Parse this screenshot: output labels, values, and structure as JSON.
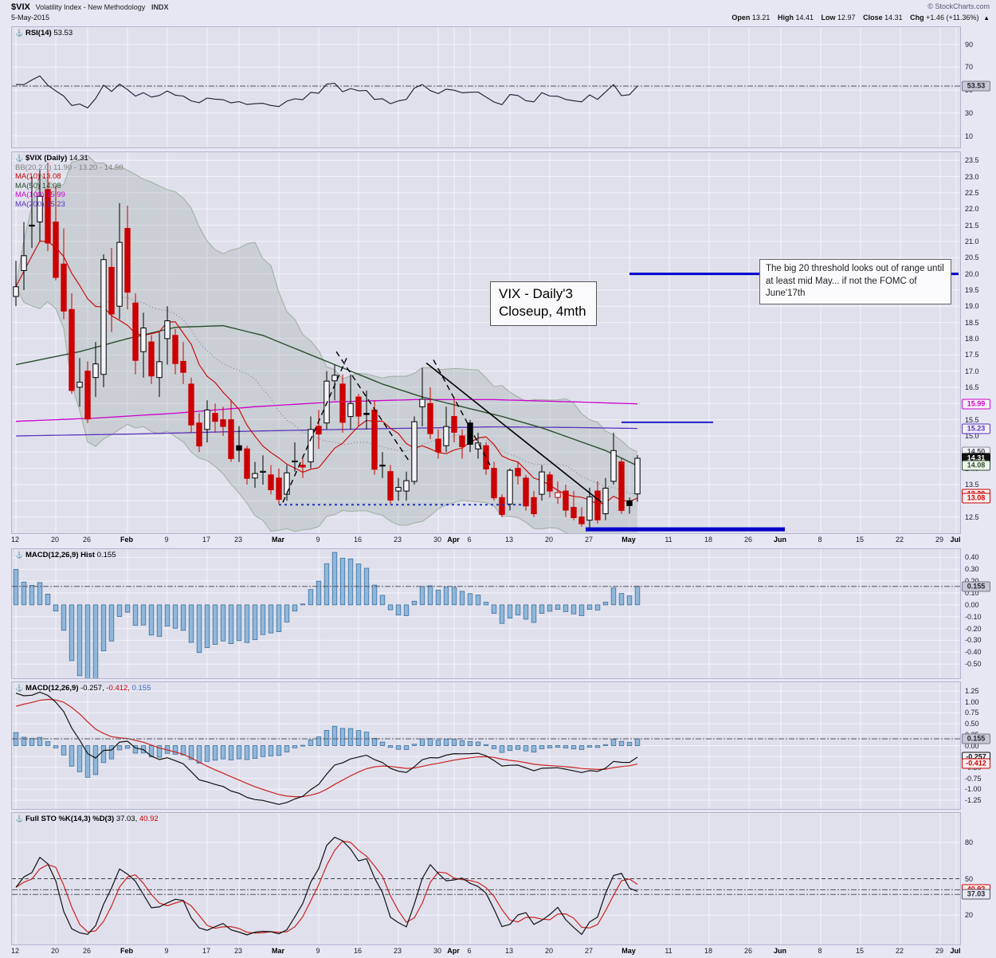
{
  "header": {
    "symbol": "$VIX",
    "title": "Volatility Index - New Methodology",
    "exchange": "INDX",
    "copyright": "© StockCharts.com",
    "date": "5-May-2015",
    "open_label": "Open",
    "open": "13.21",
    "high_label": "High",
    "high": "14.41",
    "low_label": "Low",
    "low": "12.97",
    "close_label": "Close",
    "close": "14.31",
    "chg_label": "Chg",
    "chg": "+1.46 (+11.36%)",
    "arrow": "▲"
  },
  "chart_data": {
    "type": "candlestick",
    "symbol": "$VIX",
    "frequency": "Daily",
    "title": "VIX - Daily'3 Closeup, 4mth",
    "x_total_slots": 119,
    "x_ticks": [
      {
        "i": 0,
        "t": "12"
      },
      {
        "i": 5,
        "t": "20"
      },
      {
        "i": 9,
        "t": "26"
      },
      {
        "i": 14,
        "t": "Feb",
        "m": true
      },
      {
        "i": 19,
        "t": "9"
      },
      {
        "i": 24,
        "t": "17"
      },
      {
        "i": 28,
        "t": "23"
      },
      {
        "i": 33,
        "t": "Mar",
        "m": true
      },
      {
        "i": 38,
        "t": "9"
      },
      {
        "i": 43,
        "t": "16"
      },
      {
        "i": 48,
        "t": "23"
      },
      {
        "i": 53,
        "t": "30"
      },
      {
        "i": 55,
        "t": "Apr",
        "m": true
      },
      {
        "i": 57,
        "t": "6"
      },
      {
        "i": 62,
        "t": "13"
      },
      {
        "i": 67,
        "t": "20"
      },
      {
        "i": 72,
        "t": "27"
      },
      {
        "i": 77,
        "t": "May",
        "m": true
      },
      {
        "i": 82,
        "t": "11"
      },
      {
        "i": 87,
        "t": "18"
      },
      {
        "i": 92,
        "t": "26"
      },
      {
        "i": 96,
        "t": "Jun",
        "m": true
      },
      {
        "i": 101,
        "t": "8"
      },
      {
        "i": 106,
        "t": "15"
      },
      {
        "i": 111,
        "t": "22"
      },
      {
        "i": 116,
        "t": "29"
      },
      {
        "i": 118,
        "t": "Jul",
        "m": true
      }
    ],
    "dates": [
      "Jan 12",
      "Jan 13",
      "Jan 14",
      "Jan 15",
      "Jan 16",
      "Jan 20",
      "Jan 21",
      "Jan 22",
      "Jan 23",
      "Jan 26",
      "Jan 27",
      "Jan 28",
      "Jan 29",
      "Jan 30",
      "Feb 2",
      "Feb 3",
      "Feb 4",
      "Feb 5",
      "Feb 6",
      "Feb 9",
      "Feb 10",
      "Feb 11",
      "Feb 12",
      "Feb 13",
      "Feb 17",
      "Feb 18",
      "Feb 19",
      "Feb 20",
      "Feb 23",
      "Feb 24",
      "Feb 25",
      "Feb 26",
      "Feb 27",
      "Mar 2",
      "Mar 3",
      "Mar 4",
      "Mar 5",
      "Mar 6",
      "Mar 9",
      "Mar 10",
      "Mar 11",
      "Mar 12",
      "Mar 13",
      "Mar 16",
      "Mar 17",
      "Mar 18",
      "Mar 19",
      "Mar 20",
      "Mar 23",
      "Mar 24",
      "Mar 25",
      "Mar 26",
      "Mar 27",
      "Mar 30",
      "Mar 31",
      "Apr 1",
      "Apr 2",
      "Apr 6",
      "Apr 7",
      "Apr 8",
      "Apr 9",
      "Apr 10",
      "Apr 13",
      "Apr 14",
      "Apr 15",
      "Apr 16",
      "Apr 17",
      "Apr 20",
      "Apr 21",
      "Apr 22",
      "Apr 23",
      "Apr 24",
      "Apr 27",
      "Apr 28",
      "Apr 29",
      "Apr 30",
      "May 1",
      "May 4",
      "May 5"
    ],
    "ohlc": [
      [
        19.3,
        20.4,
        19.0,
        19.6
      ],
      [
        20.1,
        21.6,
        19.5,
        20.56
      ],
      [
        21.5,
        23.0,
        20.8,
        21.48
      ],
      [
        21.6,
        23.2,
        21.0,
        22.39
      ],
      [
        22.6,
        23.43,
        20.7,
        20.95
      ],
      [
        21.6,
        22.7,
        19.8,
        19.89
      ],
      [
        20.3,
        21.4,
        18.6,
        18.85
      ],
      [
        18.9,
        19.4,
        16.3,
        16.4
      ],
      [
        16.5,
        17.4,
        15.9,
        16.66
      ],
      [
        17.0,
        17.3,
        15.4,
        15.52
      ],
      [
        16.8,
        17.9,
        16.2,
        17.22
      ],
      [
        16.9,
        20.6,
        16.5,
        20.44
      ],
      [
        20.2,
        20.8,
        18.2,
        18.76
      ],
      [
        19.0,
        22.18,
        18.6,
        20.97
      ],
      [
        21.4,
        22.1,
        18.9,
        19.43
      ],
      [
        19.1,
        19.4,
        16.9,
        17.33
      ],
      [
        17.6,
        18.8,
        16.8,
        18.33
      ],
      [
        17.9,
        18.1,
        16.6,
        16.85
      ],
      [
        16.8,
        18.2,
        16.2,
        17.29
      ],
      [
        18.0,
        19.0,
        17.2,
        18.55
      ],
      [
        18.1,
        18.3,
        16.9,
        17.23
      ],
      [
        17.3,
        17.9,
        16.6,
        16.96
      ],
      [
        16.6,
        16.8,
        15.1,
        15.34
      ],
      [
        15.4,
        15.7,
        14.5,
        14.69
      ],
      [
        15.2,
        16.1,
        14.8,
        15.8
      ],
      [
        15.7,
        16.0,
        15.1,
        15.45
      ],
      [
        15.5,
        15.9,
        15.0,
        15.29
      ],
      [
        15.5,
        16.1,
        14.2,
        14.3
      ],
      [
        14.7,
        15.3,
        14.2,
        14.56
      ],
      [
        14.6,
        14.7,
        13.5,
        13.69
      ],
      [
        13.7,
        14.2,
        13.4,
        13.84
      ],
      [
        13.9,
        14.4,
        13.5,
        13.91
      ],
      [
        13.8,
        14.1,
        13.2,
        13.34
      ],
      [
        13.7,
        14.0,
        12.9,
        13.04
      ],
      [
        13.2,
        14.1,
        13.0,
        13.86
      ],
      [
        14.2,
        14.8,
        13.9,
        14.23
      ],
      [
        14.1,
        14.3,
        13.7,
        14.04
      ],
      [
        14.2,
        15.6,
        14.0,
        15.2
      ],
      [
        15.3,
        15.8,
        14.6,
        15.06
      ],
      [
        15.4,
        17.0,
        15.2,
        16.69
      ],
      [
        16.7,
        17.2,
        16.1,
        16.87
      ],
      [
        16.6,
        16.9,
        15.1,
        15.42
      ],
      [
        15.6,
        16.9,
        15.2,
        16.0
      ],
      [
        16.2,
        16.3,
        15.3,
        15.61
      ],
      [
        15.7,
        16.4,
        15.2,
        15.66
      ],
      [
        15.8,
        16.1,
        13.8,
        13.97
      ],
      [
        14.1,
        14.5,
        13.7,
        14.07
      ],
      [
        13.9,
        14.1,
        12.9,
        13.02
      ],
      [
        13.3,
        13.7,
        13.0,
        13.41
      ],
      [
        13.3,
        13.9,
        13.0,
        13.62
      ],
      [
        13.6,
        15.6,
        13.5,
        15.44
      ],
      [
        15.9,
        17.1,
        15.3,
        16.13
      ],
      [
        16.0,
        16.5,
        14.9,
        15.07
      ],
      [
        14.9,
        15.2,
        14.3,
        14.51
      ],
      [
        14.7,
        15.9,
        14.5,
        15.29
      ],
      [
        15.6,
        16.2,
        14.8,
        15.11
      ],
      [
        15.0,
        15.2,
        14.3,
        14.67
      ],
      [
        15.4,
        15.5,
        14.5,
        14.74
      ],
      [
        14.6,
        15.1,
        14.3,
        14.78
      ],
      [
        14.7,
        14.8,
        13.8,
        13.98
      ],
      [
        14.0,
        14.2,
        13.0,
        13.09
      ],
      [
        13.1,
        13.2,
        12.5,
        12.58
      ],
      [
        12.9,
        14.0,
        12.7,
        13.94
      ],
      [
        14.0,
        14.2,
        13.5,
        13.77
      ],
      [
        13.7,
        13.8,
        12.7,
        12.84
      ],
      [
        13.1,
        13.3,
        12.5,
        12.6
      ],
      [
        13.2,
        14.1,
        13.0,
        13.89
      ],
      [
        13.8,
        13.9,
        13.1,
        13.3
      ],
      [
        13.1,
        13.6,
        12.9,
        13.25
      ],
      [
        13.3,
        13.5,
        12.5,
        12.71
      ],
      [
        12.8,
        13.3,
        12.4,
        12.48
      ],
      [
        12.5,
        12.8,
        12.2,
        12.29
      ],
      [
        12.4,
        13.4,
        12.1,
        13.12
      ],
      [
        13.3,
        13.6,
        12.3,
        12.41
      ],
      [
        12.6,
        13.7,
        12.4,
        13.39
      ],
      [
        13.6,
        15.1,
        13.5,
        14.55
      ],
      [
        14.2,
        14.3,
        12.6,
        12.7
      ],
      [
        13.0,
        13.1,
        12.6,
        12.85
      ],
      [
        13.21,
        14.41,
        12.97,
        14.31
      ]
    ],
    "panels": {
      "rsi": {
        "label": [
          [
            "RSI(14) ",
            "#000000"
          ],
          [
            "53.53",
            "#000000"
          ]
        ],
        "params": 14,
        "ylim": [
          0,
          105
        ],
        "grid": [
          90,
          70,
          50,
          30,
          10
        ],
        "axis": [
          90,
          70,
          50,
          30,
          10
        ],
        "value_lines": [
          53.53
        ],
        "tags": [
          {
            "v": 53.53,
            "text": "53.53",
            "fg": "#222233",
            "bg": "#c8c8d4",
            "bc": "#777788"
          }
        ],
        "series_color": "#1a1a2e"
      },
      "price": {
        "label": [
          [
            "$VIX (Daily) ",
            "#000000"
          ],
          [
            "14.31",
            "#000000"
          ]
        ],
        "legend": [
          [
            "BB(20,2.0) 11.90 - 13.20 - 14.50",
            "#808080"
          ],
          [
            "MA(10) 13.08",
            "#cc0000"
          ],
          [
            "MA(50) 14.08",
            "#2d4d2d"
          ],
          [
            "MA(100) 15.99",
            "#cc00cc"
          ],
          [
            "MA(200) 15.23",
            "#5a33bb"
          ]
        ],
        "ylim": [
          12.0,
          23.75
        ],
        "axis_min": 12.5,
        "axis_max": 23.5,
        "axis_step": 0.5,
        "bb": {
          "period": 20,
          "mult": 2,
          "fill": "rgba(125,145,130,0.22)",
          "edge": "#9fae9f",
          "mid": "#777777"
        },
        "ma10": {
          "period": 10,
          "color": "#cc0000"
        },
        "ma50_keyframes": [
          [
            0,
            17.2
          ],
          [
            8,
            17.6
          ],
          [
            14,
            18.0
          ],
          [
            20,
            18.35
          ],
          [
            26,
            18.4
          ],
          [
            31,
            18.1
          ],
          [
            36,
            17.6
          ],
          [
            41,
            17.1
          ],
          [
            46,
            16.6
          ],
          [
            51,
            16.2
          ],
          [
            56,
            15.9
          ],
          [
            61,
            15.6
          ],
          [
            66,
            15.25
          ],
          [
            70,
            14.9
          ],
          [
            74,
            14.55
          ],
          [
            78,
            14.08
          ]
        ],
        "ma50_color": "#2d4d2d",
        "ma100_keyframes": [
          [
            0,
            15.45
          ],
          [
            10,
            15.55
          ],
          [
            20,
            15.7
          ],
          [
            30,
            15.9
          ],
          [
            40,
            16.05
          ],
          [
            50,
            16.12
          ],
          [
            60,
            16.12
          ],
          [
            70,
            16.05
          ],
          [
            78,
            15.99
          ]
        ],
        "ma100_color": "#cc00cc",
        "ma200_keyframes": [
          [
            0,
            15.0
          ],
          [
            15,
            15.06
          ],
          [
            30,
            15.15
          ],
          [
            45,
            15.22
          ],
          [
            60,
            15.28
          ],
          [
            70,
            15.26
          ],
          [
            78,
            15.23
          ]
        ],
        "ma200_color": "#5a33bb",
        "hlines": [
          {
            "v": 20.0,
            "i1": 77,
            "i2": 119,
            "color": "#0000cc",
            "w": 3
          },
          {
            "v": 15.42,
            "i1": 76,
            "i2": 87.5,
            "color": "#2222cc",
            "w": 2
          },
          {
            "v": 12.12,
            "i1": 71.5,
            "i2": 96.5,
            "color": "#0000cc",
            "w": 5
          },
          {
            "v": 12.88,
            "i1": 33,
            "i2": 63.5,
            "color": "#2233bb",
            "w": 2,
            "dash": "3,4"
          }
        ],
        "trendlines": [
          {
            "i1": 51.5,
            "v1": 17.25,
            "i2": 73.5,
            "v2": 12.95
          },
          {
            "i1": 33.5,
            "v1": 12.95,
            "i2": 41.5,
            "v2": 17.4,
            "dash": "7,5"
          },
          {
            "i1": 40.2,
            "v1": 17.6,
            "i2": 49.4,
            "v2": 14.2,
            "dash": "7,5"
          },
          {
            "i1": 52.4,
            "v1": 17.35,
            "i2": 59.5,
            "v2": 14.1,
            "dash": "7,5"
          }
        ],
        "tags": [
          {
            "v": 15.99,
            "text": "15.99",
            "fg": "#cc00cc",
            "bc": "#cc00cc",
            "bg": "#f8f2f8"
          },
          {
            "v": 15.23,
            "text": "15.23",
            "fg": "#5a33bb",
            "bc": "#5a33bb",
            "bg": "#f2f0fa"
          },
          {
            "v": 14.5,
            "text": "14.50",
            "fg": "#444455",
            "bc": "#888899",
            "bg": "#f0f0f6"
          },
          {
            "v": 14.31,
            "text": "14.31",
            "fg": "#ffffff",
            "bc": "#000000",
            "bg": "#111111"
          },
          {
            "v": 14.08,
            "text": "14.08",
            "fg": "#2d4d2d",
            "bc": "#2d4d2d",
            "bg": "#eef4ee"
          },
          {
            "v": 13.2,
            "text": "13.20",
            "fg": "#cc0000",
            "bc": "#cc0000",
            "bg": "#faf0f0"
          },
          {
            "v": 13.08,
            "text": "13.08",
            "fg": "#cc0000",
            "bc": "#cc0000",
            "bg": "#faf0f0"
          }
        ],
        "annotations": [
          {
            "text": "VIX - Daily'3\nCloseup, 4mth"
          },
          {
            "text": "The big 20 threshold looks out of range until at least mid May... if not the FOMC of June'17th"
          }
        ]
      },
      "macd_hist": {
        "label": [
          [
            "MACD(12,26,9) Hist ",
            "#000000"
          ],
          [
            "0.155",
            "#000000"
          ]
        ],
        "ylim": [
          -0.62,
          0.47
        ],
        "axis": [
          0.4,
          0.3,
          0.2,
          0.1,
          0,
          -0.1,
          -0.2,
          -0.3,
          -0.4,
          -0.5
        ],
        "value_lines": [
          0.155
        ],
        "tags": [
          {
            "v": 0.155,
            "text": "0.155",
            "fg": "#222233",
            "bg": "#c8c8d4",
            "bc": "#777788"
          }
        ],
        "bar_fill": "#8fb8da",
        "bar_stroke": "#3f6f9f"
      },
      "macd": {
        "label": [
          [
            "MACD(12,26,9) ",
            "#000000"
          ],
          [
            "-0.257,",
            "#000000"
          ],
          [
            " -0.412,",
            "#cc0000"
          ],
          [
            " 0.155",
            "#3a6bc4"
          ]
        ],
        "params": {
          "fast": 12,
          "slow": 26,
          "signal": 9
        },
        "ylim": [
          -1.45,
          1.45
        ],
        "axis": [
          1.25,
          1.0,
          0.75,
          0.5,
          0.25,
          0,
          -0.25,
          -0.5,
          -0.75,
          -1.0,
          -1.25
        ],
        "value_lines": [
          0.155
        ],
        "tags": [
          {
            "v": 0.155,
            "text": "0.155",
            "fg": "#222233",
            "bg": "#c8c8d4",
            "bc": "#777788"
          },
          {
            "v": -0.257,
            "text": "-0.257",
            "fg": "#111111",
            "bc": "#111111",
            "bg": "#f2f2f8"
          },
          {
            "v": -0.412,
            "text": "-0.412",
            "fg": "#cc0000",
            "bc": "#cc0000",
            "bg": "#faf0f0"
          }
        ],
        "macd_color": "#111111",
        "signal_color": "#cc2222",
        "bar_fill": "#8fb8da",
        "bar_stroke": "#3f6f9f"
      },
      "stoch": {
        "label": [
          [
            "Full STO %K(14,3) %D(3) ",
            "#000000"
          ],
          [
            "37.03,",
            "#000000"
          ],
          [
            " 40.92",
            "#cc0000"
          ]
        ],
        "ylim": [
          -4,
          104
        ],
        "grid": [
          80,
          20
        ],
        "mid_dash": 50,
        "axis": [
          80,
          50,
          20
        ],
        "value_lines": [
          40.92,
          37.03
        ],
        "tags": [
          {
            "v": 40.92,
            "text": "40.92",
            "fg": "#cc0000",
            "bc": "#cc0000",
            "bg": "#faf0f0"
          },
          {
            "v": 37.03,
            "text": "37.03",
            "fg": "#222233",
            "bc": "#555566",
            "bg": "#e8e8f0"
          }
        ],
        "k_color": "#111111",
        "d_color": "#cc2222"
      }
    }
  }
}
